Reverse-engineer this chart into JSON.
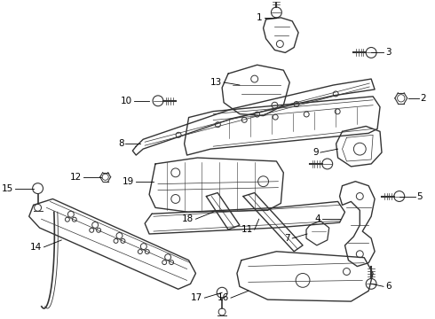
{
  "bg_color": "#ffffff",
  "line_color": "#444444",
  "label_color": "#000000",
  "fig_w": 4.9,
  "fig_h": 3.6,
  "dpi": 100
}
